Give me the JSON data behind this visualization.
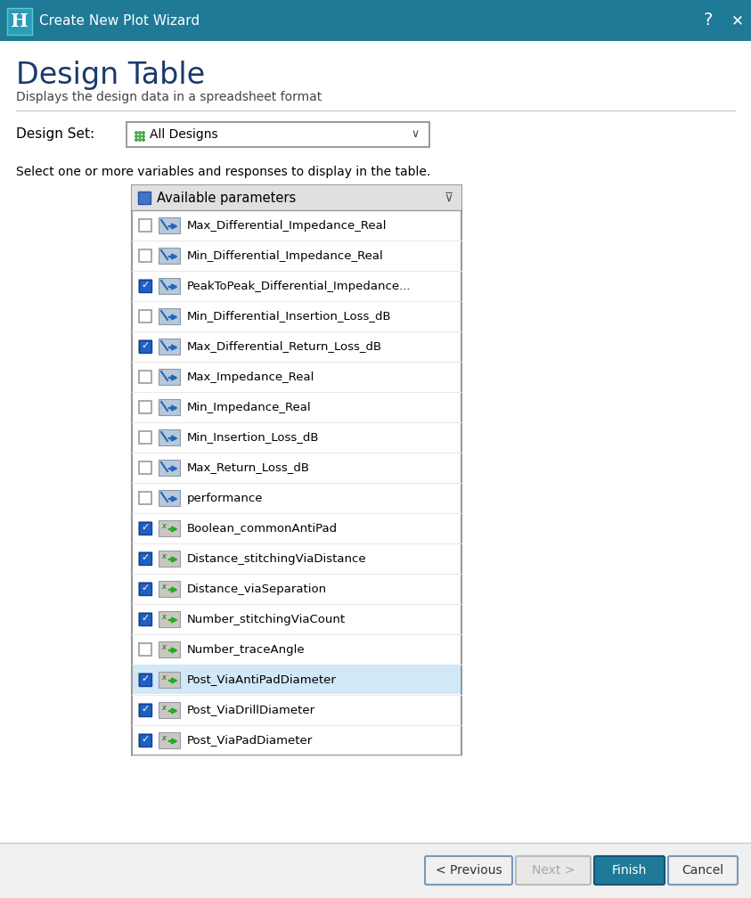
{
  "title_bar_color": "#1e7a96",
  "title_bar_text": "Create New Plot Wizard",
  "window_bg": "#f0f0f0",
  "content_bg": "#ffffff",
  "main_title": "Design Table",
  "main_title_color": "#1a3a6b",
  "subtitle": "Displays the design data in a spreadsheet format",
  "subtitle_color": "#444444",
  "design_set_label": "Design Set:",
  "design_set_value": "All Designs",
  "select_text": "Select one or more variables and responses to display in the table.",
  "list_header": "Available parameters",
  "list_header_bg": "#e0e0e0",
  "list_bg": "#ffffff",
  "list_selected_bg": "#d0e8f8",
  "list_border": "#999999",
  "items": [
    {
      "checked": false,
      "icon": "blue",
      "label": "Max_Differential_Impedance_Real"
    },
    {
      "checked": false,
      "icon": "blue",
      "label": "Min_Differential_Impedance_Real"
    },
    {
      "checked": true,
      "icon": "blue",
      "label": "PeakToPeak_Differential_Impedance..."
    },
    {
      "checked": false,
      "icon": "blue",
      "label": "Min_Differential_Insertion_Loss_dB"
    },
    {
      "checked": true,
      "icon": "blue",
      "label": "Max_Differential_Return_Loss_dB"
    },
    {
      "checked": false,
      "icon": "blue",
      "label": "Max_Impedance_Real"
    },
    {
      "checked": false,
      "icon": "blue",
      "label": "Min_Impedance_Real"
    },
    {
      "checked": false,
      "icon": "blue",
      "label": "Min_Insertion_Loss_dB"
    },
    {
      "checked": false,
      "icon": "blue",
      "label": "Max_Return_Loss_dB"
    },
    {
      "checked": false,
      "icon": "blue",
      "label": "performance"
    },
    {
      "checked": true,
      "icon": "green",
      "label": "Boolean_commonAntiPad"
    },
    {
      "checked": true,
      "icon": "green",
      "label": "Distance_stitchingViaDistance"
    },
    {
      "checked": true,
      "icon": "green",
      "label": "Distance_viaSeparation"
    },
    {
      "checked": true,
      "icon": "green",
      "label": "Number_stitchingViaCount"
    },
    {
      "checked": false,
      "icon": "green",
      "label": "Number_traceAngle"
    },
    {
      "checked": true,
      "icon": "green",
      "label": "Post_ViaAntiPadDiameter",
      "selected": true
    },
    {
      "checked": true,
      "icon": "green",
      "label": "Post_ViaDrillDiameter"
    },
    {
      "checked": true,
      "icon": "green",
      "label": "Post_ViaPadDiameter"
    }
  ],
  "btn_previous": "< Previous",
  "btn_next": "Next >",
  "btn_finish": "Finish",
  "btn_cancel": "Cancel",
  "btn_finish_bg": "#1e7a96",
  "btn_finish_fg": "#ffffff",
  "btn_normal_bg": "#f0f0f0",
  "btn_normal_fg": "#333333",
  "btn_disabled_fg": "#aaaaaa",
  "btn_disabled_bg": "#e8e8e8"
}
